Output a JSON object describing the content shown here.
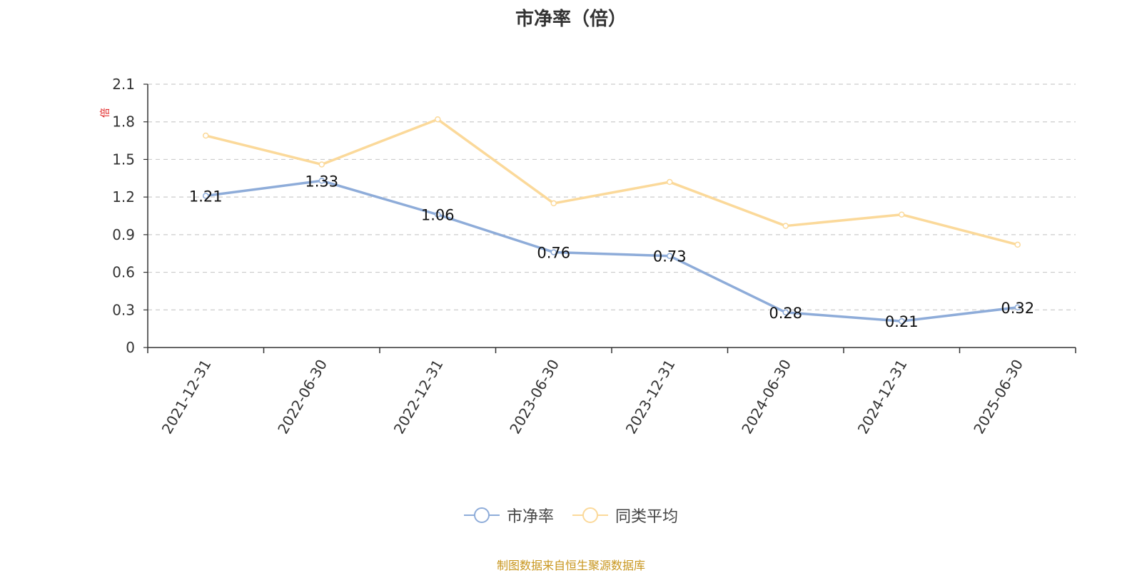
{
  "chart_data": {
    "type": "line",
    "title": "市净率（倍）",
    "ylabel": "倍",
    "ylim": [
      0,
      2.1
    ],
    "yticks": [
      "0",
      "0.3",
      "0.6",
      "0.9",
      "1.2",
      "1.5",
      "1.8",
      "2.1"
    ],
    "categories": [
      "2021-12-31",
      "2022-06-30",
      "2022-12-31",
      "2023-06-30",
      "2023-12-31",
      "2024-06-30",
      "2024-12-31",
      "2025-06-30"
    ],
    "series": [
      {
        "name": "市净率",
        "color": "#8eacd9",
        "values": [
          1.21,
          1.33,
          1.06,
          0.76,
          0.73,
          0.28,
          0.21,
          0.32
        ],
        "labels": [
          "1.21",
          "1.33",
          "1.06",
          "0.76",
          "0.73",
          "0.28",
          "0.21",
          "0.32"
        ]
      },
      {
        "name": "同类平均",
        "color": "#fbd99a",
        "values": [
          1.69,
          1.46,
          1.82,
          1.15,
          1.32,
          0.97,
          1.06,
          0.82
        ]
      }
    ],
    "grid": true,
    "legend_position": "bottom"
  },
  "footer": "制图数据来自恒生聚源数据库"
}
